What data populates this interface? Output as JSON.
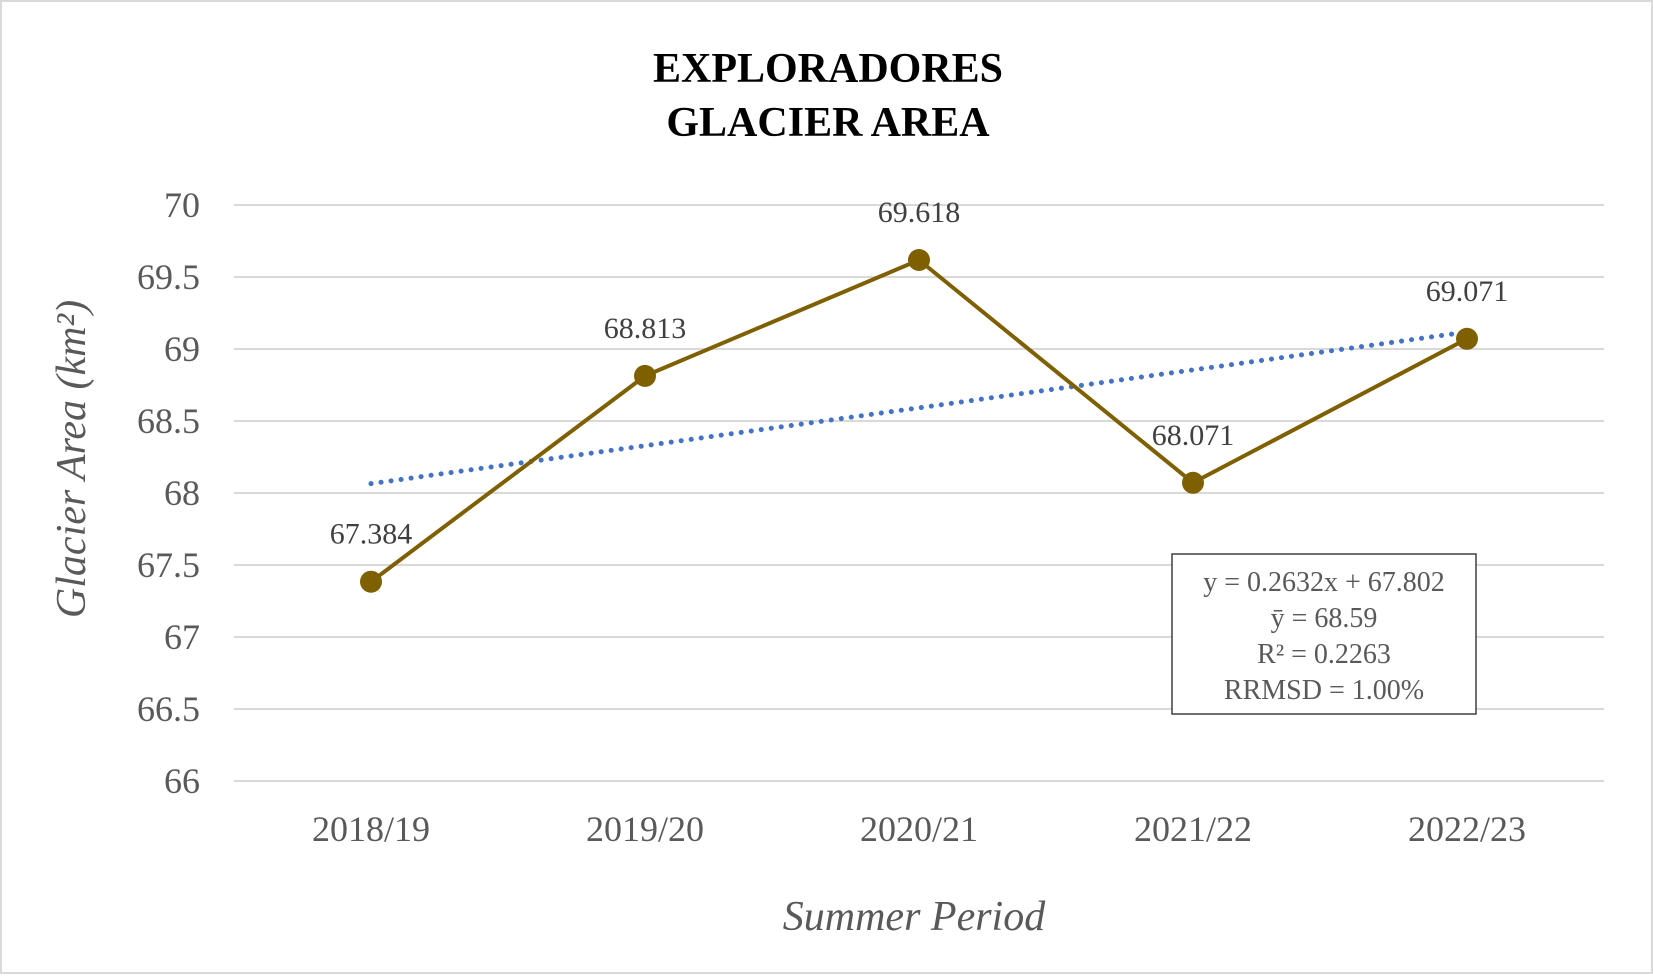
{
  "chart_data": {
    "type": "line",
    "title": [
      "EXPLORADORES",
      "GLACIER AREA"
    ],
    "xlabel": "Summer Period",
    "ylabel": "Glacier Area (km²)",
    "categories": [
      "2018/19",
      "2019/20",
      "2020/21",
      "2021/22",
      "2022/23"
    ],
    "ylim": [
      66,
      70
    ],
    "yticks": [
      66,
      66.5,
      67,
      67.5,
      68,
      68.5,
      69,
      69.5,
      70
    ],
    "ytick_labels": [
      "66",
      "66.5",
      "67",
      "67.5",
      "68",
      "68.5",
      "69",
      "69.5",
      "70"
    ],
    "grid": true,
    "series": [
      {
        "values": [
          67.384,
          68.813,
          69.618,
          68.071,
          69.071
        ],
        "data_labels": [
          "67.384",
          "68.813",
          "69.618",
          "68.071",
          "69.071"
        ],
        "color": "#7f6000",
        "marker": "circle"
      }
    ],
    "trendline": {
      "type": "linear",
      "slope": 0.2632,
      "intercept": 67.802,
      "color": "#4472c4",
      "style": "dotted"
    },
    "annotation": {
      "lines": [
        "y = 0.2632x + 67.802",
        "ȳ = 68.59",
        "R² = 0.2263",
        "RRMSD = 1.00%"
      ],
      "placement": "bottom-right"
    }
  }
}
